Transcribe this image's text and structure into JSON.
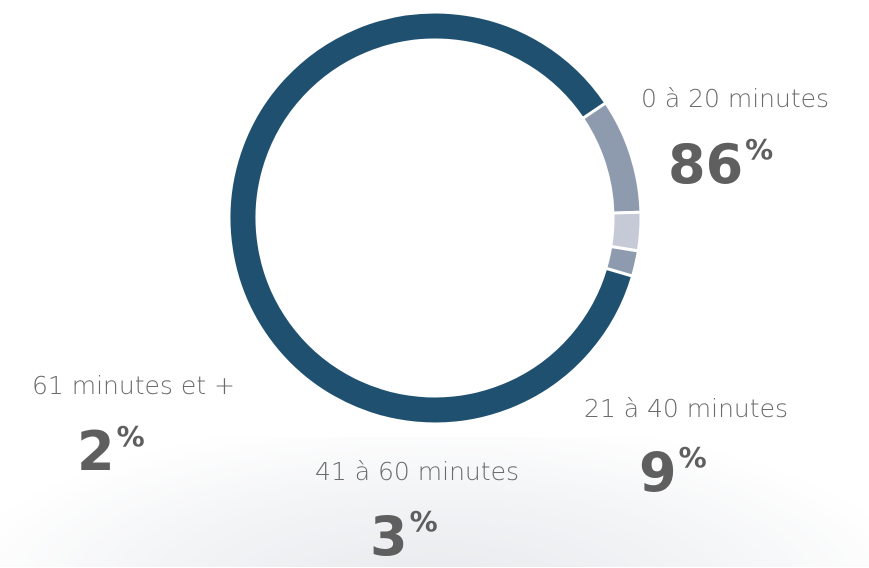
{
  "chart_data": {
    "type": "pie",
    "variant": "donut",
    "categories": [
      "0 à 20 minutes",
      "21 à 40 minutes",
      "41 à 60 minutes",
      "61 minutes et +"
    ],
    "values": [
      86,
      9,
      3,
      2
    ],
    "value_labels": [
      "86",
      "9",
      "3",
      "2"
    ],
    "unit": "%",
    "colors": [
      "#1f5070",
      "#8e9bae",
      "#c5cad6",
      "#8e9bae"
    ]
  }
}
